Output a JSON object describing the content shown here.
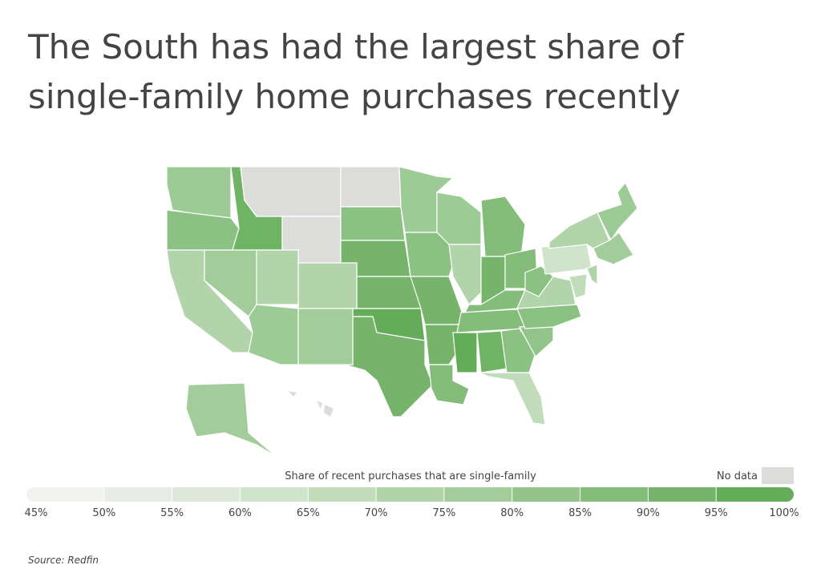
{
  "title": [
    "The South has had the largest share of",
    "single-family home purchases recently"
  ],
  "legend": {
    "title": "Share of recent purchases that are single-family",
    "no_data": "No data",
    "no_data_color": "#dcdcdb",
    "ticks": [
      {
        "value": 45,
        "label": "45%"
      },
      {
        "value": 50,
        "label": "50%"
      },
      {
        "value": 55,
        "label": "55%"
      },
      {
        "value": 60,
        "label": "60%"
      },
      {
        "value": 65,
        "label": "65%"
      },
      {
        "value": 70,
        "label": "70%"
      },
      {
        "value": 75,
        "label": "75%"
      },
      {
        "value": 80,
        "label": "80%"
      },
      {
        "value": 85,
        "label": "85%"
      },
      {
        "value": 90,
        "label": "90%"
      },
      {
        "value": 95,
        "label": "95%"
      },
      {
        "value": 100,
        "label": "100%"
      }
    ],
    "colors": [
      "#f2f2f1",
      "#e7ece6",
      "#dde8da",
      "#cfe4ca",
      "#c0dcba",
      "#b1d4aa",
      "#a2cc9a",
      "#93c48a",
      "#84bc7a",
      "#75b46a",
      "#64ac59"
    ]
  },
  "source": "Source:  Redfin"
}
